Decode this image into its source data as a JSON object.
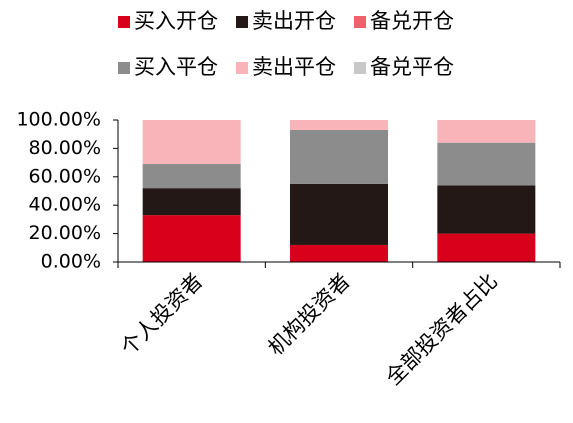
{
  "chart_data": {
    "type": "stacked_bar",
    "categories": [
      "个人投资者",
      "机构投资者",
      "全部投资者占比"
    ],
    "series": [
      {
        "name": "买入开仓",
        "color": "#d9001b",
        "values": [
          33,
          12,
          20
        ]
      },
      {
        "name": "卖出开仓",
        "color": "#231815",
        "values": [
          19,
          43,
          34
        ]
      },
      {
        "name": "备兑开仓",
        "color": "#f0616e",
        "values": [
          0,
          0,
          0
        ]
      },
      {
        "name": "买入平仓",
        "color": "#8c8c8c",
        "values": [
          17,
          38,
          30
        ]
      },
      {
        "name": "卖出平仓",
        "color": "#f8b4b8",
        "values": [
          31,
          7,
          16
        ]
      },
      {
        "name": "备兑平仓",
        "color": "#c8c8c8",
        "values": [
          0,
          0,
          0
        ]
      }
    ],
    "ylim": [
      0,
      100
    ],
    "yticks": [
      {
        "value": 0,
        "label": "0.00%"
      },
      {
        "value": 20,
        "label": "20.00%"
      },
      {
        "value": 40,
        "label": "40.00%"
      },
      {
        "value": 60,
        "label": "60.00%"
      },
      {
        "value": 80,
        "label": "80.00%"
      },
      {
        "value": 100,
        "label": "100.00%"
      }
    ],
    "legend_position": "top"
  }
}
